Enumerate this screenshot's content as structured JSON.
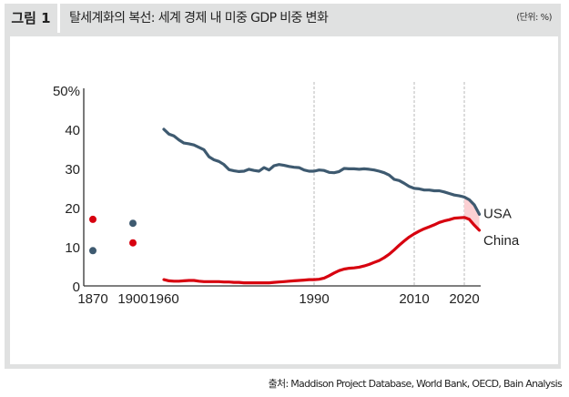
{
  "header": {
    "figure_label": "그림 1",
    "title": "탈세계화의 복선: 세계 경제 내 미중 GDP 비중 변화",
    "unit": "(단위: %)"
  },
  "footer": {
    "source": "출처: Maddison Project Database, World Bank, OECD, Bain Analysis"
  },
  "colors": {
    "usa": "#3e5a70",
    "china": "#d7000f",
    "gap_fill": "#fbd0d3",
    "frame": "#e0e1e1",
    "guide": "#b8b8b8"
  },
  "chart_data": {
    "type": "line",
    "title": "탈세계화의 복선: 세계 경제 내 미중 GDP 비중 변화",
    "unit": "%",
    "xlabel": "",
    "ylabel": "",
    "ylim": [
      0,
      50
    ],
    "y_ticks": [
      {
        "value": 0,
        "label": "0"
      },
      {
        "value": 10,
        "label": "10"
      },
      {
        "value": 20,
        "label": "20"
      },
      {
        "value": 30,
        "label": "30"
      },
      {
        "value": 40,
        "label": "40"
      },
      {
        "value": 50,
        "label": "50%"
      }
    ],
    "x_ticks": [
      "1870",
      "1900",
      "1960",
      "1990",
      "2010",
      "2020"
    ],
    "vertical_guides": [
      1990,
      2010,
      2020
    ],
    "grid": false,
    "legend": "inline labels at line ends (right)",
    "highlight": "shaded gap between USA and China after 2020",
    "points": [
      {
        "series": "USA",
        "year": 1870,
        "value": 9
      },
      {
        "series": "China",
        "year": 1870,
        "value": 17
      },
      {
        "series": "USA",
        "year": 1900,
        "value": 16
      },
      {
        "series": "China",
        "year": 1900,
        "value": 11
      }
    ],
    "series": [
      {
        "name": "USA",
        "label": "USA",
        "x": [
          1960,
          1961,
          1962,
          1963,
          1964,
          1965,
          1966,
          1967,
          1968,
          1969,
          1970,
          1971,
          1972,
          1973,
          1974,
          1975,
          1976,
          1977,
          1978,
          1979,
          1980,
          1981,
          1982,
          1983,
          1984,
          1985,
          1986,
          1987,
          1988,
          1989,
          1990,
          1991,
          1992,
          1993,
          1994,
          1995,
          1996,
          1997,
          1998,
          1999,
          2000,
          2001,
          2002,
          2003,
          2004,
          2005,
          2006,
          2007,
          2008,
          2009,
          2010,
          2011,
          2012,
          2013,
          2014,
          2015,
          2016,
          2017,
          2018,
          2019,
          2020,
          2021,
          2022,
          2023
        ],
        "values": [
          40,
          38.8,
          38.3,
          37.3,
          36.5,
          36.3,
          36,
          35.4,
          34.8,
          33,
          32.2,
          31.8,
          31,
          29.7,
          29.4,
          29.2,
          29.3,
          29.8,
          29.5,
          29.3,
          30.2,
          29.6,
          30.7,
          31,
          30.8,
          30.5,
          30.3,
          30.2,
          29.6,
          29.3,
          29.3,
          29.6,
          29.5,
          29,
          28.9,
          29.2,
          30,
          29.9,
          29.9,
          29.8,
          29.9,
          29.8,
          29.6,
          29.3,
          28.9,
          28.3,
          27.2,
          26.9,
          26.2,
          25.4,
          24.9,
          24.8,
          24.5,
          24.5,
          24.3,
          24.3,
          24,
          23.6,
          23.2,
          23,
          22.7,
          22,
          20.7,
          18.3
        ]
      },
      {
        "name": "China",
        "label": "China",
        "x": [
          1960,
          1961,
          1962,
          1963,
          1964,
          1965,
          1966,
          1967,
          1968,
          1969,
          1970,
          1971,
          1972,
          1973,
          1974,
          1975,
          1976,
          1977,
          1978,
          1979,
          1980,
          1981,
          1982,
          1983,
          1984,
          1985,
          1986,
          1987,
          1988,
          1989,
          1990,
          1991,
          1992,
          1993,
          1994,
          1995,
          1996,
          1997,
          1998,
          1999,
          2000,
          2001,
          2002,
          2003,
          2004,
          2005,
          2006,
          2007,
          2008,
          2009,
          2010,
          2011,
          2012,
          2013,
          2014,
          2015,
          2016,
          2017,
          2018,
          2019,
          2020,
          2021,
          2022,
          2023
        ],
        "values": [
          1.6,
          1.3,
          1.2,
          1.2,
          1.3,
          1.4,
          1.4,
          1.2,
          1.1,
          1.1,
          1.1,
          1.1,
          1.0,
          1.0,
          0.9,
          0.9,
          0.8,
          0.8,
          0.8,
          0.8,
          0.8,
          0.8,
          0.9,
          1.0,
          1.1,
          1.2,
          1.3,
          1.4,
          1.5,
          1.6,
          1.6,
          1.7,
          2.0,
          2.6,
          3.3,
          3.9,
          4.3,
          4.5,
          4.6,
          4.8,
          5.1,
          5.5,
          6.0,
          6.5,
          7.2,
          8.1,
          9.2,
          10.4,
          11.5,
          12.5,
          13.3,
          14.0,
          14.6,
          15.1,
          15.6,
          16.2,
          16.6,
          16.9,
          17.3,
          17.4,
          17.5,
          17.0,
          15.5,
          14.2
        ]
      }
    ]
  }
}
